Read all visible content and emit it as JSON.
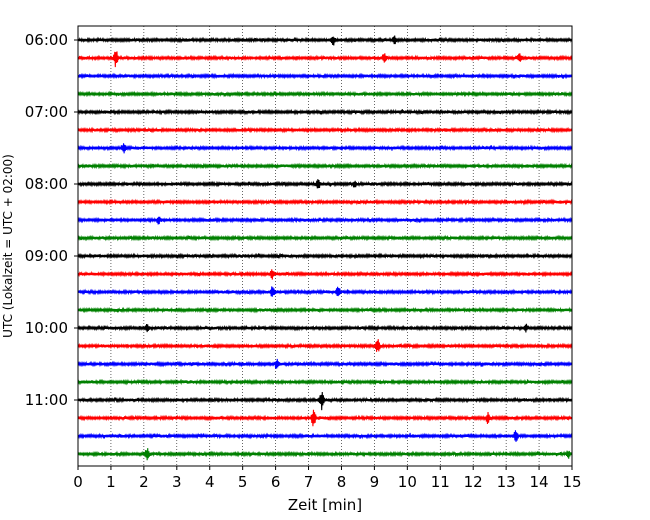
{
  "chart_data": {
    "type": "line",
    "title": "",
    "xlabel": "Zeit  [min]",
    "ylabel": "UTC (Lokalzeit = UTC + 02:00)",
    "xlim": [
      0,
      15
    ],
    "x_ticks": [
      "0",
      "1",
      "2",
      "3",
      "4",
      "5",
      "6",
      "7",
      "8",
      "9",
      "10",
      "11",
      "12",
      "13",
      "14",
      "15"
    ],
    "grid": {
      "vertical_dotted": true,
      "horizontal": false
    },
    "y_tick_labels": [
      {
        "label": "06:00",
        "row": 0
      },
      {
        "label": "07:00",
        "row": 4
      },
      {
        "label": "08:00",
        "row": 8
      },
      {
        "label": "09:00",
        "row": 12
      },
      {
        "label": "10:00",
        "row": 16
      },
      {
        "label": "11:00",
        "row": 20
      }
    ],
    "row_count": 24,
    "minutes_per_row": 15,
    "color_cycle": [
      "#000000",
      "#ff0000",
      "#0000ff",
      "#008000"
    ],
    "events": [
      {
        "row": 1,
        "x": 1.15,
        "amp": 1.0
      },
      {
        "row": 0,
        "x": 7.75,
        "amp": 0.45
      },
      {
        "row": 0,
        "x": 9.6,
        "amp": 0.4
      },
      {
        "row": 1,
        "x": 9.3,
        "amp": 0.45
      },
      {
        "row": 1,
        "x": 13.4,
        "amp": 0.4
      },
      {
        "row": 6,
        "x": 1.4,
        "amp": 0.6
      },
      {
        "row": 8,
        "x": 7.3,
        "amp": 0.45
      },
      {
        "row": 8,
        "x": 8.4,
        "amp": 0.35
      },
      {
        "row": 10,
        "x": 2.45,
        "amp": 0.35
      },
      {
        "row": 13,
        "x": 5.9,
        "amp": 0.5
      },
      {
        "row": 14,
        "x": 5.9,
        "amp": 0.5
      },
      {
        "row": 14,
        "x": 7.9,
        "amp": 0.55
      },
      {
        "row": 16,
        "x": 2.1,
        "amp": 0.45
      },
      {
        "row": 16,
        "x": 13.6,
        "amp": 0.4
      },
      {
        "row": 17,
        "x": 9.1,
        "amp": 0.75
      },
      {
        "row": 18,
        "x": 6.05,
        "amp": 0.5
      },
      {
        "row": 20,
        "x": 7.4,
        "amp": 0.95
      },
      {
        "row": 21,
        "x": 7.15,
        "amp": 0.85
      },
      {
        "row": 21,
        "x": 12.45,
        "amp": 0.6
      },
      {
        "row": 22,
        "x": 13.3,
        "amp": 0.55
      },
      {
        "row": 23,
        "x": 2.1,
        "amp": 0.6
      },
      {
        "row": 23,
        "x": 14.9,
        "amp": 0.45
      }
    ]
  }
}
